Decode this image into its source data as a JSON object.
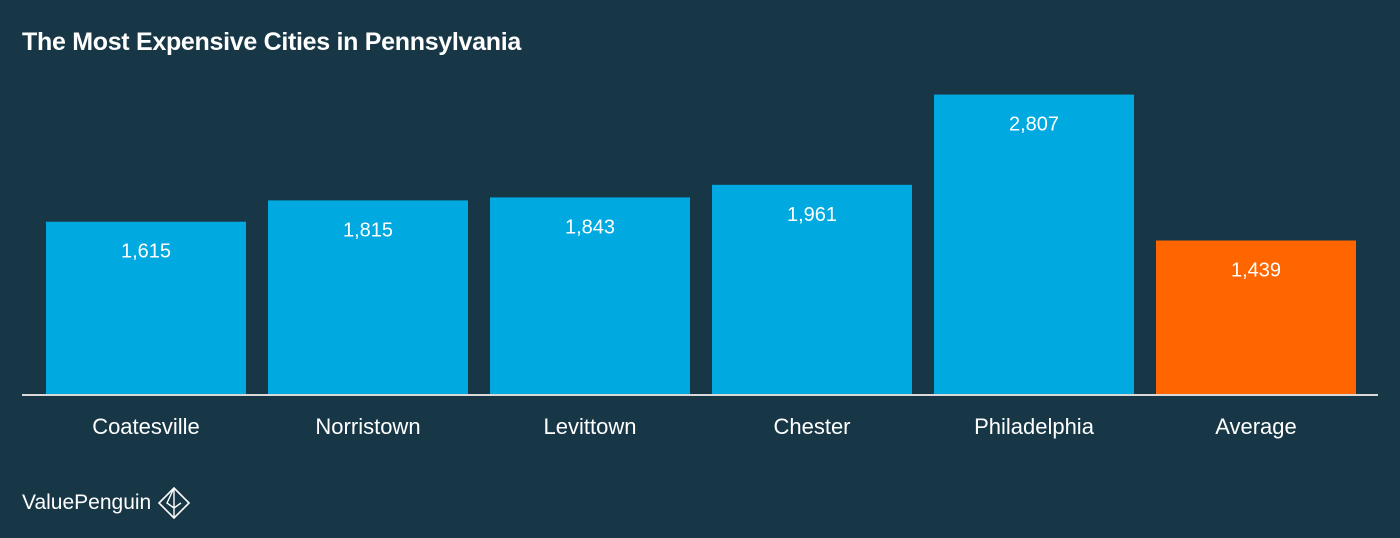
{
  "chart_data": {
    "type": "bar",
    "title": "The Most Expensive Cities in Pennsylvania",
    "categories": [
      "Coatesville",
      "Norristown",
      "Levittown",
      "Chester",
      "Philadelphia",
      "Average"
    ],
    "values": [
      1615,
      1815,
      1843,
      1961,
      2807,
      1439
    ],
    "value_labels": [
      "1,615",
      "1,815",
      "1,843",
      "1,961",
      "2,807",
      "1,439"
    ],
    "ylim": [
      0,
      3000
    ],
    "grid": false,
    "legend": "none",
    "colors": {
      "bar": "#00a9e0",
      "highlight": "#ff6600",
      "background": "#173746",
      "baseline": "#d9d9d9",
      "text": "#ffffff"
    },
    "highlight_category": "Average"
  },
  "brand": {
    "name": "ValuePenguin",
    "icon": "valuepenguin-logo-icon"
  }
}
